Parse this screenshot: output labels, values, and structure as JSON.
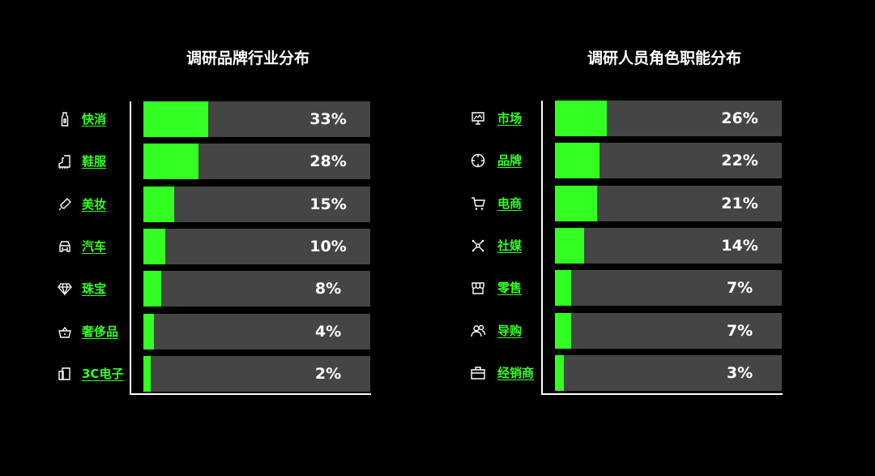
{
  "colors": {
    "background": "#000000",
    "bar_fill": "#33ff22",
    "bar_track": "#454545",
    "label": "#33ff22",
    "text": "#ffffff"
  },
  "left": {
    "title": "调研品牌行业分布",
    "items": [
      {
        "label": "快消",
        "value": 33,
        "display": "33%",
        "icon": "bottle-icon"
      },
      {
        "label": "鞋服",
        "value": 28,
        "display": "28%",
        "icon": "boot-icon"
      },
      {
        "label": "美妆",
        "value": 15,
        "display": "15%",
        "icon": "lipstick-icon"
      },
      {
        "label": "汽车",
        "value": 10,
        "display": "10%",
        "icon": "car-icon"
      },
      {
        "label": "珠宝",
        "value": 8,
        "display": "8%",
        "icon": "diamond-icon"
      },
      {
        "label": "奢侈品",
        "value": 4,
        "display": "4%",
        "icon": "basket-icon"
      },
      {
        "label": "3C电子",
        "value": 2,
        "display": "2%",
        "icon": "devices-icon"
      }
    ]
  },
  "right": {
    "title": "调研人员角色职能分布",
    "items": [
      {
        "label": "市场",
        "value": 26,
        "display": "26%",
        "icon": "monitor-chart-icon"
      },
      {
        "label": "品牌",
        "value": 22,
        "display": "22%",
        "icon": "crosshair-icon"
      },
      {
        "label": "电商",
        "value": 21,
        "display": "21%",
        "icon": "cart-icon"
      },
      {
        "label": "社媒",
        "value": 14,
        "display": "14%",
        "icon": "network-icon"
      },
      {
        "label": "零售",
        "value": 7,
        "display": "7%",
        "icon": "store-icon"
      },
      {
        "label": "导购",
        "value": 7,
        "display": "7%",
        "icon": "users-icon"
      },
      {
        "label": "经销商",
        "value": 3,
        "display": "3%",
        "icon": "briefcase-icon"
      }
    ]
  },
  "chart_data": [
    {
      "type": "bar",
      "orientation": "horizontal",
      "title": "调研品牌行业分布",
      "categories": [
        "快消",
        "鞋服",
        "美妆",
        "汽车",
        "珠宝",
        "奢侈品",
        "3C电子"
      ],
      "values": [
        33,
        28,
        15,
        10,
        8,
        4,
        2
      ],
      "unit": "%",
      "xlabel": "",
      "ylabel": "",
      "xlim": [
        0,
        100
      ],
      "grid": false,
      "legend": null
    },
    {
      "type": "bar",
      "orientation": "horizontal",
      "title": "调研人员角色职能分布",
      "categories": [
        "市场",
        "品牌",
        "电商",
        "社媒",
        "零售",
        "导购",
        "经销商"
      ],
      "values": [
        26,
        22,
        21,
        14,
        7,
        7,
        3
      ],
      "unit": "%",
      "xlabel": "",
      "ylabel": "",
      "xlim": [
        0,
        100
      ],
      "grid": false,
      "legend": null
    }
  ]
}
